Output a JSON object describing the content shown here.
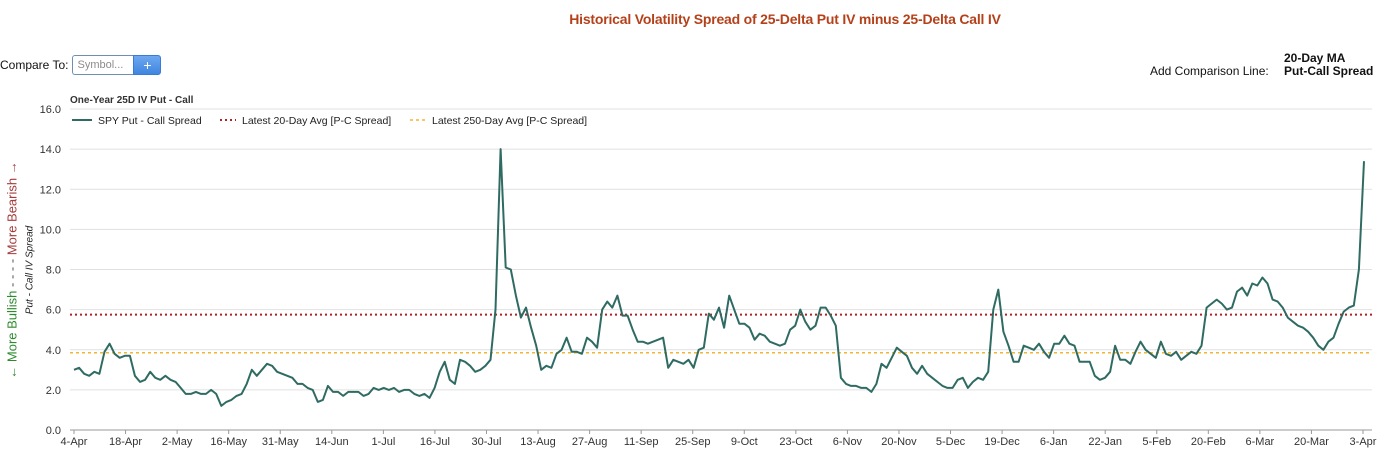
{
  "title": "Historical Volatility Spread of 25-Delta Put IV minus 25-Delta Call IV",
  "compare": {
    "label": "Compare To:",
    "placeholder": "Symbol...",
    "add_button": "+"
  },
  "comparison_line": {
    "label": "Add Comparison Line:",
    "options": [
      "20-Day MA",
      "Put-Call Spread"
    ]
  },
  "side_label": {
    "bullish": "← More Bullish",
    "separator": " - - - - ",
    "bearish": "More Bearish →"
  },
  "colors": {
    "series": "#2f6b62",
    "avg20": "#b22222",
    "avg250": "#f2b632",
    "title": "#b4411a"
  },
  "chart_data": {
    "type": "line",
    "subtitle": "One-Year 25D IV Put - Call",
    "ylabel": "Put - Call IV Spread",
    "ylim": [
      0,
      16
    ],
    "yticks": [
      "0.0",
      "2.0",
      "4.0",
      "6.0",
      "8.0",
      "10.0",
      "12.0",
      "14.0",
      "16.0"
    ],
    "xtick_labels": [
      "4-Apr",
      "18-Apr",
      "2-May",
      "16-May",
      "31-May",
      "14-Jun",
      "1-Jul",
      "16-Jul",
      "30-Jul",
      "13-Aug",
      "27-Aug",
      "11-Sep",
      "25-Sep",
      "9-Oct",
      "23-Oct",
      "6-Nov",
      "20-Nov",
      "5-Dec",
      "19-Dec",
      "6-Jan",
      "22-Jan",
      "5-Feb",
      "20-Feb",
      "6-Mar",
      "20-Mar",
      "3-Apr"
    ],
    "grid": true,
    "legend_position": "top-left",
    "series": [
      {
        "name": "SPY Put - Call Spread",
        "style": "solid",
        "values": [
          3.0,
          3.1,
          2.8,
          2.7,
          2.9,
          2.8,
          3.9,
          4.3,
          3.8,
          3.6,
          3.7,
          3.7,
          2.7,
          2.4,
          2.5,
          2.9,
          2.6,
          2.5,
          2.7,
          2.5,
          2.4,
          2.1,
          1.8,
          1.8,
          1.9,
          1.8,
          1.8,
          2.0,
          1.8,
          1.2,
          1.4,
          1.5,
          1.7,
          1.8,
          2.3,
          3.0,
          2.7,
          3.0,
          3.3,
          3.2,
          2.9,
          2.8,
          2.7,
          2.6,
          2.3,
          2.3,
          2.1,
          2.0,
          1.4,
          1.5,
          2.2,
          1.9,
          1.9,
          1.7,
          1.9,
          1.9,
          1.9,
          1.7,
          1.8,
          2.1,
          2.0,
          2.1,
          2.0,
          2.1,
          1.9,
          2.0,
          2.0,
          1.8,
          1.7,
          1.8,
          1.6,
          2.1,
          2.9,
          3.4,
          2.5,
          2.3,
          3.5,
          3.4,
          3.2,
          2.9,
          3.0,
          3.2,
          3.5,
          6.0,
          14.0,
          8.1,
          8.0,
          6.7,
          5.6,
          6.1,
          5.1,
          4.2,
          3.0,
          3.2,
          3.1,
          3.8,
          4.0,
          4.6,
          3.9,
          3.9,
          3.8,
          4.6,
          4.4,
          4.1,
          6.0,
          6.4,
          6.1,
          6.7,
          5.7,
          5.7,
          5.0,
          4.4,
          4.4,
          4.3,
          4.4,
          4.5,
          4.6,
          3.1,
          3.5,
          3.4,
          3.3,
          3.5,
          3.1,
          4.0,
          4.1,
          5.8,
          5.5,
          6.1,
          5.1,
          6.7,
          6.0,
          5.3,
          5.3,
          5.1,
          4.5,
          4.8,
          4.7,
          4.4,
          4.3,
          4.2,
          4.3,
          5.0,
          5.2,
          6.0,
          5.4,
          5.0,
          5.2,
          6.1,
          6.1,
          5.7,
          5.2,
          2.6,
          2.3,
          2.2,
          2.2,
          2.1,
          2.1,
          1.9,
          2.3,
          3.3,
          3.1,
          3.6,
          4.1,
          3.9,
          3.7,
          3.1,
          2.8,
          3.2,
          2.8,
          2.6,
          2.4,
          2.2,
          2.1,
          2.1,
          2.5,
          2.6,
          2.1,
          2.4,
          2.6,
          2.5,
          2.9,
          6.0,
          7.0,
          4.9,
          4.2,
          3.4,
          3.4,
          4.2,
          4.1,
          4.0,
          4.3,
          3.9,
          3.6,
          4.3,
          4.3,
          4.7,
          4.3,
          4.2,
          3.4,
          3.4,
          3.4,
          2.7,
          2.5,
          2.6,
          2.9,
          4.2,
          3.5,
          3.5,
          3.3,
          3.9,
          4.4,
          4.0,
          3.8,
          3.6,
          4.4,
          3.8,
          3.7,
          3.9,
          3.5,
          3.7,
          3.9,
          3.8,
          4.2,
          6.1,
          6.3,
          6.5,
          6.3,
          6.0,
          6.1,
          6.9,
          7.1,
          6.7,
          7.3,
          7.2,
          7.6,
          7.3,
          6.5,
          6.4,
          6.1,
          5.6,
          5.4,
          5.2,
          5.1,
          4.9,
          4.6,
          4.2,
          4.0,
          4.4,
          4.6,
          5.3,
          5.9,
          6.1,
          6.2,
          8.0,
          13.4
        ]
      },
      {
        "name": "Latest 20-Day Avg [P-C Spread]",
        "style": "dotted",
        "value": 5.75
      },
      {
        "name": "Latest 250-Day Avg [P-C Spread]",
        "style": "dashed",
        "value": 3.85
      }
    ]
  }
}
